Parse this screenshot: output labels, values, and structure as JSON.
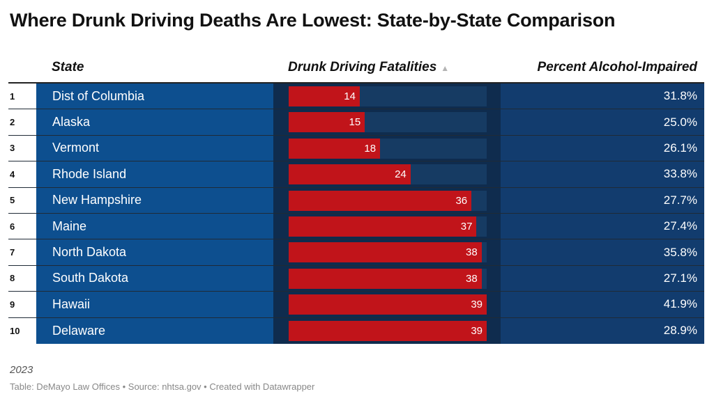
{
  "title": "Where Drunk Driving Deaths Are Lowest: State-by-State Comparison",
  "headers": {
    "state": "State",
    "fatalities": "Drunk Driving Fatalities",
    "percent": "Percent Alcohol-Impaired",
    "sort_icon": "sort-ascending-icon"
  },
  "note": "2023",
  "source": "Table: DeMayo Law Offices • Source: nhtsa.gov • Created with Datawrapper",
  "colors": {
    "state_cell": "#0d4f8f",
    "bar": "#c1141a",
    "bar_track": "#163b63",
    "percent_cell": "#123c6e"
  },
  "chart_data": {
    "type": "table",
    "title": "Where Drunk Driving Deaths Are Lowest: State-by-State Comparison",
    "columns": [
      "State",
      "Drunk Driving Fatalities",
      "Percent Alcohol-Impaired"
    ],
    "bar_max": 39,
    "rows": [
      {
        "rank": "1",
        "state": "Dist of Columbia",
        "fatalities": 14,
        "percent": "31.8%"
      },
      {
        "rank": "2",
        "state": "Alaska",
        "fatalities": 15,
        "percent": "25.0%"
      },
      {
        "rank": "3",
        "state": "Vermont",
        "fatalities": 18,
        "percent": "26.1%"
      },
      {
        "rank": "4",
        "state": "Rhode Island",
        "fatalities": 24,
        "percent": "33.8%"
      },
      {
        "rank": "5",
        "state": "New Hampshire",
        "fatalities": 36,
        "percent": "27.7%"
      },
      {
        "rank": "6",
        "state": "Maine",
        "fatalities": 37,
        "percent": "27.4%"
      },
      {
        "rank": "7",
        "state": "North Dakota",
        "fatalities": 38,
        "percent": "35.8%"
      },
      {
        "rank": "8",
        "state": "South Dakota",
        "fatalities": 38,
        "percent": "27.1%"
      },
      {
        "rank": "9",
        "state": "Hawaii",
        "fatalities": 39,
        "percent": "41.9%"
      },
      {
        "rank": "10",
        "state": "Delaware",
        "fatalities": 39,
        "percent": "28.9%"
      }
    ]
  }
}
